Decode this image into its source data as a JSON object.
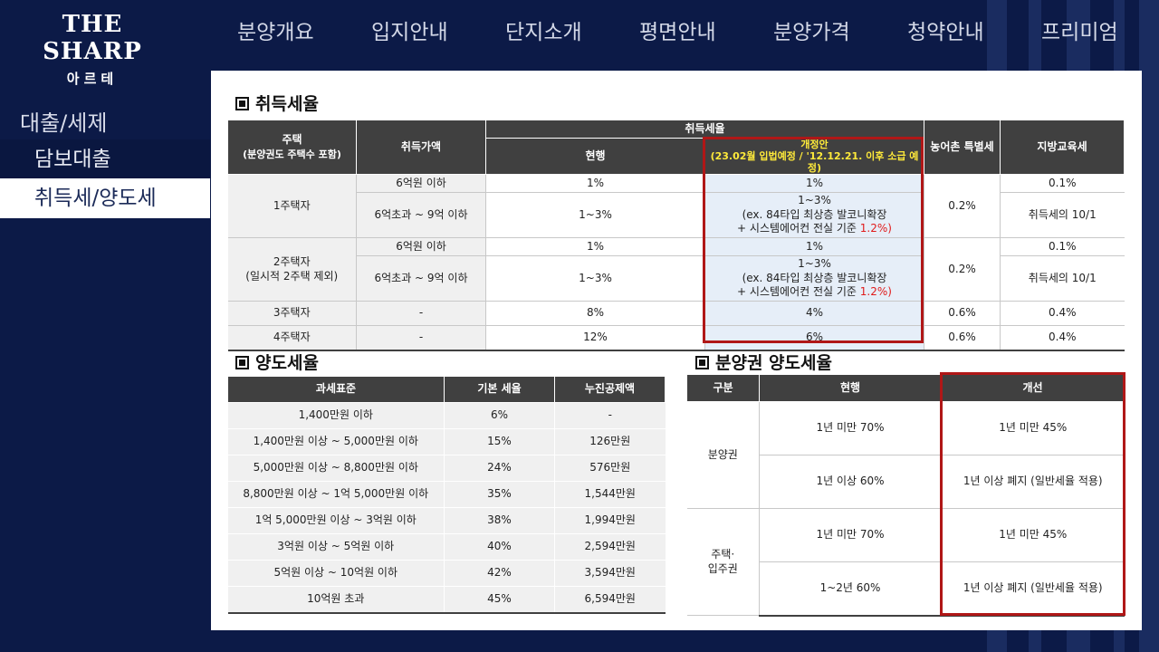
{
  "logo": {
    "line1": "THE SHARP",
    "line2": "아르테"
  },
  "nav": [
    "분양개요",
    "입지안내",
    "단지소개",
    "평면안내",
    "분양가격",
    "청약안내",
    "프리미엄"
  ],
  "sidebar": {
    "title": "대출/세제",
    "items": [
      {
        "label": "담보대출",
        "active": false
      },
      {
        "label": "취득세/양도세",
        "active": true
      }
    ]
  },
  "acq": {
    "title": "취득세율",
    "headers": {
      "house": "주택",
      "house_sub": "(분양권도 주택수 포함)",
      "price": "취득가액",
      "rate": "취득세율",
      "current": "현행",
      "reform": "개정안",
      "reform_sub": "(23.02월 입법예정 / '12.12.21. 이후 소급 예정)",
      "rural": "농어촌 특별세",
      "edu": "지방교육세"
    },
    "groups": [
      {
        "name": "1주택자",
        "name_sub": "",
        "rural": "0.2%",
        "rows": [
          {
            "price": "6억원 이하",
            "current": "1%",
            "reform_a": "1%",
            "reform_b": "",
            "reform_c": "",
            "reform_red": "",
            "edu": "0.1%"
          },
          {
            "price": "6억초과 ~ 9억 이하",
            "current": "1~3%",
            "reform_a": "1~3%",
            "reform_b": "(ex. 84타입 최상층 발코니확장",
            "reform_c": "+ 시스템에어컨 전실 기준",
            "reform_red": "1.2%)",
            "edu": "취득세의 10/1"
          }
        ]
      },
      {
        "name": "2주택자",
        "name_sub": "(일시적 2주택 제외)",
        "rural": "0.2%",
        "rows": [
          {
            "price": "6억원 이하",
            "current": "1%",
            "reform_a": "1%",
            "reform_b": "",
            "reform_c": "",
            "reform_red": "",
            "edu": "0.1%"
          },
          {
            "price": "6억초과 ~ 9억 이하",
            "current": "1~3%",
            "reform_a": "1~3%",
            "reform_b": "(ex. 84타입 최상층 발코니확장",
            "reform_c": "+ 시스템에어컨 전실 기준",
            "reform_red": "1.2%)",
            "edu": "취득세의 10/1"
          }
        ]
      },
      {
        "name": "3주택자",
        "name_sub": "",
        "rural": "0.6%",
        "rows": [
          {
            "price": "-",
            "current": "8%",
            "reform_a": "4%",
            "edu": "0.4%"
          }
        ]
      },
      {
        "name": "4주택자",
        "name_sub": "",
        "rural": "0.6%",
        "rows": [
          {
            "price": "-",
            "current": "12%",
            "reform_a": "6%",
            "edu": "0.4%"
          }
        ]
      }
    ]
  },
  "transfer": {
    "title": "양도세율",
    "headers": [
      "과세표준",
      "기본 세율",
      "누진공제액"
    ],
    "rows": [
      [
        "1,400만원 이하",
        "6%",
        "-"
      ],
      [
        "1,400만원 이상 ~ 5,000만원 이하",
        "15%",
        "126만원"
      ],
      [
        "5,000만원 이상 ~ 8,800만원 이하",
        "24%",
        "576만원"
      ],
      [
        "8,800만원 이상 ~ 1억 5,000만원 이하",
        "35%",
        "1,544만원"
      ],
      [
        "1억 5,000만원 이상 ~ 3억원 이하",
        "38%",
        "1,994만원"
      ],
      [
        "3억원 이상 ~ 5억원 이하",
        "40%",
        "2,594만원"
      ],
      [
        "5억원 이상 ~ 10억원 이하",
        "42%",
        "3,594만원"
      ],
      [
        "10억원 초과",
        "45%",
        "6,594만원"
      ]
    ]
  },
  "presale": {
    "title": "분양권 양도세율",
    "headers": [
      "구분",
      "현행",
      "개선"
    ],
    "groups": [
      {
        "name": "분양권",
        "name_sub": "",
        "rows": [
          [
            "1년 미만 70%",
            "1년 미만 45%"
          ],
          [
            "1년 이상 60%",
            "1년 이상 폐지 (일반세율 적용)"
          ]
        ]
      },
      {
        "name": "주택·",
        "name_sub": "입주권",
        "rows": [
          [
            "1년 미만 70%",
            "1년 미만 45%"
          ],
          [
            "1~2년 60%",
            "1년 이상 폐지 (일반세율 적용)"
          ]
        ]
      }
    ]
  }
}
